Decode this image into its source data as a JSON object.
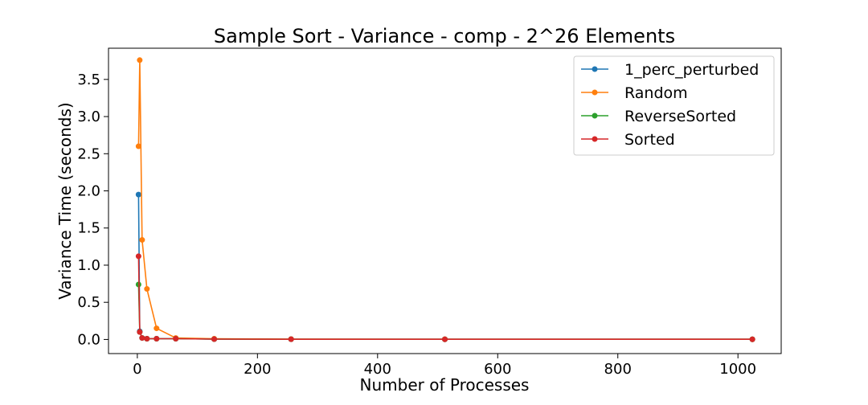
{
  "chart_data": {
    "type": "line",
    "title": "Sample Sort - Variance - comp - 2^26 Elements",
    "xlabel": "Number of Processes",
    "ylabel": "Variance Time (seconds)",
    "xlim": [
      -48,
      1072
    ],
    "ylim": [
      -0.19,
      3.92
    ],
    "xticks": [
      0,
      200,
      400,
      600,
      800,
      1000
    ],
    "xtick_labels": [
      "0",
      "200",
      "400",
      "600",
      "800",
      "1000"
    ],
    "yticks": [
      0.0,
      0.5,
      1.0,
      1.5,
      2.0,
      2.5,
      3.0,
      3.5
    ],
    "ytick_labels": [
      "0.0",
      "0.5",
      "1.0",
      "1.5",
      "2.0",
      "2.5",
      "3.0",
      "3.5"
    ],
    "grid": false,
    "legend": "top-right",
    "x": [
      2,
      4,
      8,
      16,
      32,
      64,
      128,
      256,
      512,
      1024
    ],
    "series": [
      {
        "name": "1_perc_perturbed",
        "color": "#1f77b4",
        "values": [
          1.95,
          0.11,
          0.02,
          0.01,
          0.01,
          0.01,
          0.005,
          0.003,
          0.002,
          0.002
        ]
      },
      {
        "name": "Random",
        "color": "#ff7f0e",
        "values": [
          2.6,
          3.76,
          1.34,
          0.68,
          0.15,
          0.02,
          0.01,
          0.005,
          0.003,
          0.002
        ]
      },
      {
        "name": "ReverseSorted",
        "color": "#2ca02c",
        "values": [
          0.74,
          0.1,
          0.02,
          0.01,
          0.01,
          0.01,
          0.005,
          0.003,
          0.002,
          0.002
        ]
      },
      {
        "name": "Sorted",
        "color": "#d62728",
        "values": [
          1.12,
          0.1,
          0.02,
          0.01,
          0.01,
          0.01,
          0.005,
          0.003,
          0.002,
          0.002
        ]
      }
    ]
  }
}
